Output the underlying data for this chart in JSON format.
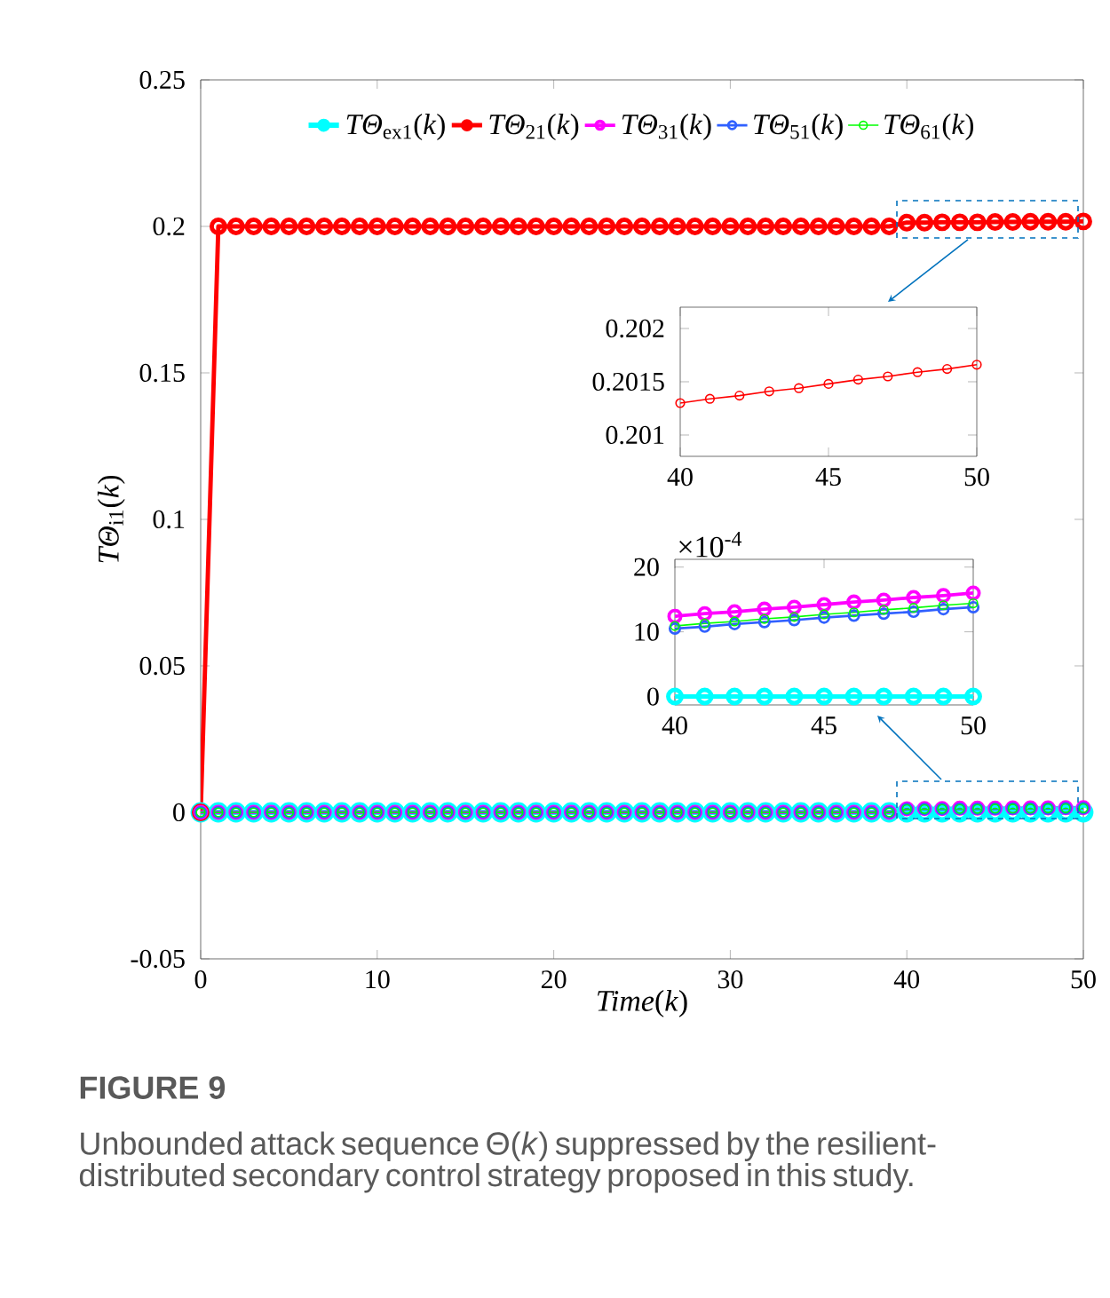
{
  "chart_data": [
    {
      "type": "line",
      "xlabel": "*Time*(*k*)",
      "ylabel": "*TΘ*$_{i1}$(*k*)",
      "marker": "circle",
      "line_style": "solid",
      "legend": "top",
      "xlim": [
        0,
        50
      ],
      "ylim": [
        -0.05,
        0.25
      ],
      "xticks": [
        0,
        10,
        20,
        30,
        40,
        50
      ],
      "yticks": [
        -0.05,
        0,
        0.05,
        0.1,
        0.15,
        0.2,
        0.25
      ],
      "x": [
        0,
        1,
        2,
        3,
        4,
        5,
        6,
        7,
        8,
        9,
        10,
        11,
        12,
        13,
        14,
        15,
        16,
        17,
        18,
        19,
        20,
        21,
        22,
        23,
        24,
        25,
        26,
        27,
        28,
        29,
        30,
        31,
        32,
        33,
        34,
        35,
        36,
        37,
        38,
        39,
        40,
        41,
        42,
        43,
        44,
        45,
        46,
        47,
        48,
        49,
        50
      ],
      "annotations": [
        "FIGURE 9",
        "Unbounded attack sequence Θ(*k*) suppressed by the resilient-distributed secondary control strategy proposed in this study."
      ],
      "series": [
        {
          "name": "*TΘ*$_{ex1}$(*k*)",
          "color": "#00ffff",
          "values": [
            0,
            0,
            0,
            0,
            0,
            0,
            0,
            0,
            0,
            0,
            0,
            0,
            0,
            0,
            0,
            0,
            0,
            0,
            0,
            0,
            0,
            0,
            0,
            0,
            0,
            0,
            0,
            0,
            0,
            0,
            0,
            0,
            0,
            0,
            0,
            0,
            0,
            0,
            0,
            0,
            0,
            0,
            0,
            0,
            0,
            0,
            0,
            0,
            0,
            0,
            0
          ]
        },
        {
          "name": "*TΘ*$_{21}$(*k*)",
          "color": "#ff0000",
          "values": [
            0,
            0.2,
            0.2,
            0.2,
            0.2,
            0.2,
            0.2,
            0.2,
            0.2,
            0.2,
            0.2,
            0.2,
            0.2,
            0.2,
            0.2,
            0.2,
            0.2,
            0.2,
            0.2,
            0.2,
            0.2,
            0.2,
            0.2,
            0.2,
            0.2,
            0.2,
            0.2,
            0.2,
            0.2,
            0.2,
            0.2,
            0.2,
            0.2,
            0.2,
            0.2,
            0.2,
            0.2,
            0.2,
            0.2,
            0.2,
            0.2013,
            0.2013,
            0.2014,
            0.2014,
            0.2014,
            0.2015,
            0.2015,
            0.2016,
            0.2016,
            0.2016,
            0.2017
          ]
        },
        {
          "name": "*TΘ*$_{31}$(*k*)",
          "color": "#ff00ff",
          "values": [
            0,
            0,
            0,
            0,
            0,
            0,
            0,
            0,
            0,
            0,
            0,
            0,
            0,
            0,
            0,
            0,
            0,
            0,
            0,
            0,
            0,
            0,
            0,
            0,
            0,
            0,
            0,
            0,
            0,
            0,
            0,
            0,
            0,
            0,
            0,
            0,
            0,
            0,
            0,
            0,
            0.0012,
            0.0013,
            0.0013,
            0.0014,
            0.0014,
            0.0014,
            0.0015,
            0.0015,
            0.0015,
            0.0016,
            0.0016
          ]
        },
        {
          "name": "*TΘ*$_{51}$(*k*)",
          "color": "#3060ff",
          "values": [
            0,
            0,
            0,
            0,
            0,
            0,
            0,
            0,
            0,
            0,
            0,
            0,
            0,
            0,
            0,
            0,
            0,
            0,
            0,
            0,
            0,
            0,
            0,
            0,
            0,
            0,
            0,
            0,
            0,
            0,
            0,
            0,
            0,
            0,
            0,
            0,
            0,
            0,
            0,
            0,
            0.0011,
            0.0011,
            0.0011,
            0.0012,
            0.0012,
            0.0012,
            0.0013,
            0.0013,
            0.0013,
            0.0014,
            0.0014
          ]
        },
        {
          "name": "*TΘ*$_{61}$(*k*)",
          "color": "#00ff00",
          "values": [
            0,
            0,
            0,
            0,
            0,
            0,
            0,
            0,
            0,
            0,
            0,
            0,
            0,
            0,
            0,
            0,
            0,
            0,
            0,
            0,
            0,
            0,
            0,
            0,
            0,
            0,
            0,
            0,
            0,
            0,
            0,
            0,
            0,
            0,
            0,
            0,
            0,
            0,
            0,
            0,
            0.0011,
            0.0011,
            0.0012,
            0.0012,
            0.0012,
            0.0013,
            0.0013,
            0.0013,
            0.0014,
            0.0014,
            0.0014
          ]
        }
      ]
    },
    {
      "type": "line",
      "marker": "circle",
      "line_style": "solid",
      "xlim": [
        40,
        50
      ],
      "ylim": [
        0.2008,
        0.2022
      ],
      "xticks": [
        40,
        45,
        50
      ],
      "yticks": [
        0.201,
        0.2015,
        0.202
      ],
      "x": [
        40,
        41,
        42,
        43,
        44,
        45,
        46,
        47,
        48,
        49,
        50
      ],
      "series": [
        {
          "color": "#ff0000",
          "values": [
            0.2013,
            0.20134,
            0.20137,
            0.20141,
            0.20144,
            0.20148,
            0.20152,
            0.20155,
            0.20159,
            0.20162,
            0.20166
          ]
        }
      ]
    },
    {
      "type": "line",
      "marker": "circle",
      "line_style": "solid",
      "xlim": [
        40,
        50
      ],
      "ylim": [
        -1.3,
        21.2
      ],
      "xticks": [
        40,
        45,
        50
      ],
      "yticks": [
        0,
        10,
        20
      ],
      "x": [
        40,
        41,
        42,
        43,
        44,
        45,
        46,
        47,
        48,
        49,
        50
      ],
      "annotations": [
        "×10$^{-4}$"
      ],
      "series": [
        {
          "color": "#00ffff",
          "values": [
            0,
            0,
            0,
            0,
            0,
            0,
            0,
            0,
            0,
            0,
            0
          ]
        },
        {
          "color": "#ff00ff",
          "values": [
            12.4,
            12.8,
            13.1,
            13.5,
            13.8,
            14.2,
            14.6,
            14.9,
            15.3,
            15.6,
            16.0
          ]
        },
        {
          "color": "#3060ff",
          "values": [
            10.5,
            10.8,
            11.2,
            11.5,
            11.8,
            12.2,
            12.5,
            12.8,
            13.1,
            13.5,
            13.8
          ]
        },
        {
          "color": "#00ff00",
          "values": [
            10.9,
            11.3,
            11.6,
            12.0,
            12.3,
            12.7,
            13.0,
            13.4,
            13.7,
            14.1,
            14.4
          ]
        }
      ]
    }
  ]
}
